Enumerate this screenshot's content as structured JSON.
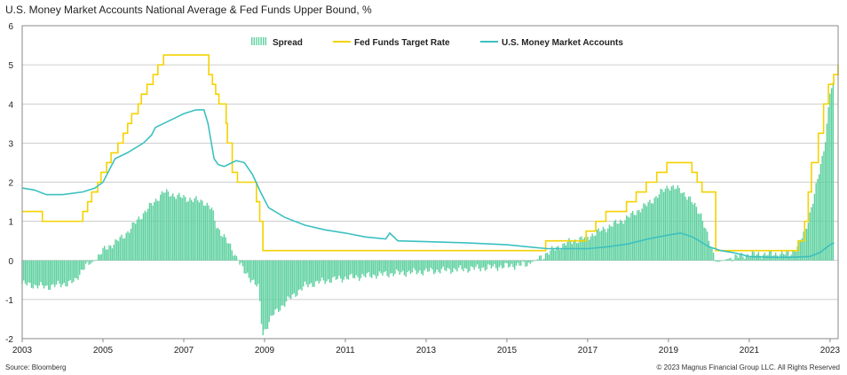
{
  "title": "U.S. Money Market Accounts National Average & Fed Funds Upper Bound, %",
  "source": "Source: Bloomberg",
  "copyright": "© 2023 Magnus Financial Group LLC. All Rights Reserved",
  "colors": {
    "spread": "#5fd1a0",
    "fed": "#f5d200",
    "mma": "#3cc0c0",
    "grid": "#bdbdbd"
  },
  "chart_data": {
    "type": "line",
    "title": "U.S. Money Market Accounts National Average & Fed Funds Upper Bound, %",
    "xlabel": "",
    "ylabel": "",
    "xlim": [
      2003,
      2023.2
    ],
    "ylim": [
      -2,
      6
    ],
    "x_ticks": [
      "2003",
      "2005",
      "2007",
      "2009",
      "2011",
      "2013",
      "2015",
      "2017",
      "2019",
      "2021",
      "2023"
    ],
    "y_ticks": [
      "6",
      "5",
      "4",
      "3",
      "2",
      "1",
      "0",
      "-1",
      "-2"
    ],
    "grid": true,
    "legend": {
      "position": "top-center",
      "entries": [
        "Spread",
        "Fed Funds Target Rate",
        "U.S. Money Market Accounts"
      ]
    },
    "series": [
      {
        "name": "Fed Funds Target Rate",
        "style": "step",
        "x": [
          2003.0,
          2003.5,
          2004.5,
          2004.62,
          2004.72,
          2004.87,
          2004.95,
          2005.09,
          2005.2,
          2005.37,
          2005.5,
          2005.61,
          2005.71,
          2005.87,
          2005.95,
          2006.09,
          2006.24,
          2006.36,
          2006.5,
          2007.62,
          2007.71,
          2007.79,
          2007.87,
          2008.05,
          2008.08,
          2008.2,
          2008.33,
          2008.8,
          2008.88,
          2008.96,
          2015.96,
          2016.96,
          2017.2,
          2017.45,
          2017.96,
          2018.2,
          2018.45,
          2018.71,
          2018.96,
          2019.58,
          2019.71,
          2019.83,
          2020.17,
          2020.21,
          2022.21,
          2022.37,
          2022.46,
          2022.54,
          2022.71,
          2022.84,
          2022.96,
          2023.09,
          2023.2
        ],
        "values": [
          1.25,
          1.0,
          1.25,
          1.5,
          1.75,
          2.0,
          2.25,
          2.5,
          2.75,
          3.0,
          3.25,
          3.5,
          3.75,
          4.0,
          4.25,
          4.5,
          4.75,
          5.0,
          5.25,
          4.75,
          4.5,
          4.25,
          4.0,
          3.5,
          3.0,
          2.25,
          2.0,
          1.5,
          1.0,
          0.25,
          0.5,
          0.75,
          1.0,
          1.25,
          1.5,
          1.75,
          2.0,
          2.25,
          2.5,
          2.25,
          2.0,
          1.75,
          0.25,
          0.25,
          0.5,
          1.0,
          1.75,
          2.5,
          3.25,
          4.0,
          4.5,
          4.75,
          5.0
        ]
      },
      {
        "name": "U.S. Money Market Accounts",
        "style": "line",
        "x": [
          2003.0,
          2003.3,
          2003.6,
          2004.0,
          2004.5,
          2004.8,
          2005.0,
          2005.3,
          2005.6,
          2006.0,
          2006.2,
          2006.3,
          2006.5,
          2006.8,
          2007.0,
          2007.3,
          2007.5,
          2007.6,
          2007.75,
          2007.85,
          2008.0,
          2008.3,
          2008.5,
          2008.7,
          2008.9,
          2009.1,
          2009.5,
          2010.0,
          2010.5,
          2011.0,
          2011.5,
          2012.0,
          2012.1,
          2012.3,
          2013.0,
          2014.0,
          2015.0,
          2015.5,
          2016.0,
          2016.5,
          2017.0,
          2017.5,
          2018.0,
          2018.5,
          2019.0,
          2019.3,
          2019.6,
          2020.0,
          2020.3,
          2020.6,
          2021.0,
          2021.5,
          2022.0,
          2022.5,
          2022.75,
          2023.0,
          2023.1
        ],
        "values": [
          1.85,
          1.8,
          1.68,
          1.68,
          1.75,
          1.85,
          2.0,
          2.6,
          2.75,
          3.0,
          3.2,
          3.4,
          3.5,
          3.65,
          3.75,
          3.85,
          3.85,
          3.5,
          2.6,
          2.45,
          2.4,
          2.55,
          2.5,
          2.2,
          1.75,
          1.35,
          1.1,
          0.9,
          0.78,
          0.7,
          0.6,
          0.55,
          0.7,
          0.5,
          0.48,
          0.45,
          0.4,
          0.35,
          0.3,
          0.3,
          0.3,
          0.35,
          0.42,
          0.55,
          0.65,
          0.7,
          0.6,
          0.35,
          0.25,
          0.2,
          0.1,
          0.08,
          0.08,
          0.1,
          0.2,
          0.4,
          0.45
        ]
      },
      {
        "name": "Spread",
        "style": "bar",
        "x": [
          2003.0,
          2003.6,
          2004.3,
          2004.5,
          2004.8,
          2005.0,
          2005.5,
          2006.0,
          2006.5,
          2007.0,
          2007.5,
          2007.7,
          2007.8,
          2008.0,
          2008.3,
          2008.5,
          2008.7,
          2008.85,
          2008.95,
          2009.2,
          2009.6,
          2010.0,
          2010.5,
          2011.0,
          2012.0,
          2013.0,
          2014.0,
          2015.0,
          2015.5,
          2015.9,
          2016.0,
          2016.5,
          2017.0,
          2017.5,
          2018.0,
          2018.5,
          2019.0,
          2019.3,
          2019.5,
          2019.8,
          2020.0,
          2020.2,
          2020.5,
          2021.0,
          2022.0,
          2022.2,
          2022.4,
          2022.6,
          2022.8,
          2022.9,
          2023.0,
          2023.1
        ],
        "values": [
          -0.6,
          -0.68,
          -0.55,
          -0.2,
          0.0,
          0.25,
          0.6,
          1.2,
          1.75,
          1.6,
          1.5,
          1.3,
          0.9,
          0.6,
          0.1,
          -0.3,
          -0.5,
          -0.7,
          -1.9,
          -1.4,
          -1.0,
          -0.65,
          -0.52,
          -0.45,
          -0.35,
          -0.28,
          -0.22,
          -0.15,
          -0.1,
          0.1,
          0.2,
          0.45,
          0.6,
          0.85,
          1.1,
          1.45,
          1.9,
          1.8,
          1.6,
          1.2,
          0.5,
          -0.05,
          0.05,
          0.15,
          0.17,
          0.35,
          0.8,
          1.6,
          2.6,
          3.2,
          4.3,
          4.5
        ]
      }
    ]
  }
}
